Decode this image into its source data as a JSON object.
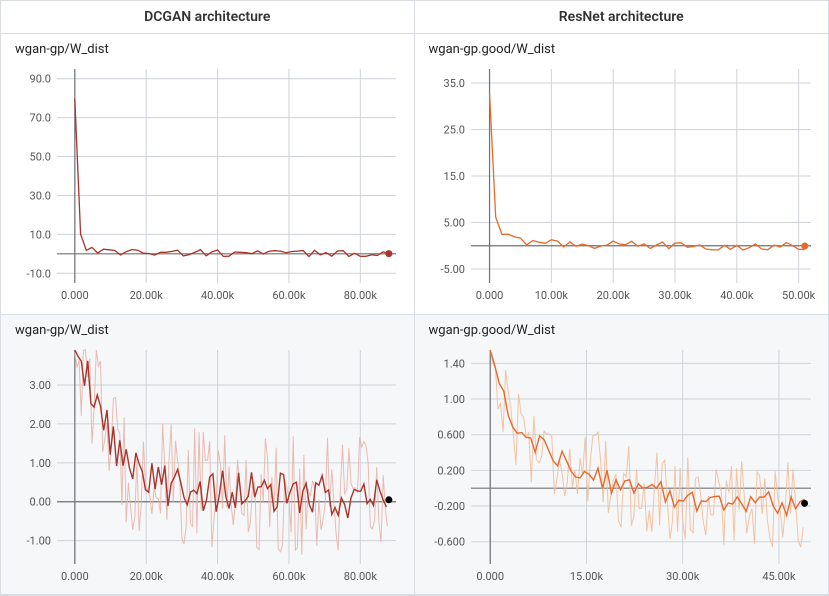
{
  "headers": {
    "left": "DCGAN architecture",
    "right": "ResNet architecture"
  },
  "charts": {
    "tl": {
      "title": "wgan-gp/W_dist",
      "type": "line",
      "line_color": "#a8342a",
      "marker_color": "#a8342a",
      "background_color": "#ffffff",
      "grid_color": "#cfd3d8",
      "axis_color": "#6e7377",
      "line_width": 1.3,
      "end_marker_radius": 3.5,
      "xlim": [
        -5000,
        90000
      ],
      "ylim": [
        -15,
        95
      ],
      "xticks": [
        0,
        20000,
        40000,
        60000,
        80000
      ],
      "xtick_labels": [
        "0.000",
        "20.00k",
        "40.00k",
        "60.00k",
        "80.00k"
      ],
      "yticks": [
        -10,
        10,
        30,
        50,
        70,
        90
      ],
      "ytick_labels": [
        "-10.0",
        "10.0",
        "30.0",
        "50.0",
        "70.0",
        "90.0"
      ],
      "title_fontsize": 13,
      "tick_fontsize": 11,
      "series_smoothed": [
        [
          0,
          80
        ],
        [
          300,
          55
        ],
        [
          600,
          35
        ],
        [
          900,
          22
        ],
        [
          1200,
          15
        ],
        [
          1600,
          10
        ],
        [
          2000,
          7
        ],
        [
          2800,
          4
        ],
        [
          4000,
          2.5
        ],
        [
          6000,
          1.8
        ],
        [
          10000,
          1.2
        ],
        [
          15000,
          1.0
        ],
        [
          20000,
          0.8
        ],
        [
          30000,
          0.5
        ],
        [
          40000,
          0.3
        ],
        [
          50000,
          0.3
        ],
        [
          60000,
          0.2
        ],
        [
          70000,
          0.2
        ],
        [
          80000,
          0.1
        ],
        [
          88000,
          0.1
        ]
      ],
      "series_noise_amp": 1.8,
      "series_noise_freq": 1600
    },
    "tr": {
      "title": "wgan-gp.good/W_dist",
      "type": "line",
      "line_color": "#e86a2b",
      "marker_color": "#e86a2b",
      "background_color": "#ffffff",
      "grid_color": "#cfd3d8",
      "axis_color": "#6e7377",
      "line_width": 1.3,
      "end_marker_radius": 3.5,
      "xlim": [
        -3000,
        52000
      ],
      "ylim": [
        -8,
        38
      ],
      "xticks": [
        0,
        10000,
        20000,
        30000,
        40000,
        50000
      ],
      "xtick_labels": [
        "0.000",
        "10.00k",
        "20.00k",
        "30.00k",
        "40.00k",
        "50.00k"
      ],
      "yticks": [
        -5,
        5,
        15,
        25,
        35
      ],
      "ytick_labels": [
        "-5.00",
        "5.00",
        "15.0",
        "25.0",
        "35.0"
      ],
      "title_fontsize": 13,
      "tick_fontsize": 11,
      "series_smoothed": [
        [
          0,
          33
        ],
        [
          200,
          22
        ],
        [
          400,
          14
        ],
        [
          700,
          9
        ],
        [
          1000,
          6
        ],
        [
          1500,
          4
        ],
        [
          2200,
          2.5
        ],
        [
          3200,
          1.5
        ],
        [
          5000,
          1.0
        ],
        [
          8000,
          0.7
        ],
        [
          12000,
          0.4
        ],
        [
          18000,
          0.2
        ],
        [
          25000,
          0.1
        ],
        [
          32000,
          0.0
        ],
        [
          40000,
          -0.05
        ],
        [
          48000,
          -0.05
        ],
        [
          51000,
          -0.05
        ]
      ],
      "series_noise_amp": 0.9,
      "series_noise_freq": 1000
    },
    "bl": {
      "title": "wgan-gp/W_dist",
      "type": "line",
      "line_color": "#a8342a",
      "raw_color": "#e8b4ab",
      "background_color": "#f6f7f8",
      "grid_color": "#cfd3d8",
      "axis_color": "#6e7377",
      "line_width": 1.4,
      "raw_line_width": 1.0,
      "end_marker_radius": 3.5,
      "xlim": [
        -5000,
        90000
      ],
      "ylim": [
        -1.6,
        3.9
      ],
      "xticks": [
        0,
        20000,
        40000,
        60000,
        80000
      ],
      "xtick_labels": [
        "0.000",
        "20.00k",
        "40.00k",
        "60.00k",
        "80.00k"
      ],
      "yticks": [
        -1.0,
        0.0,
        1.0,
        2.0,
        3.0
      ],
      "ytick_labels": [
        "-1.00",
        "0.00",
        "1.00",
        "2.00",
        "3.00"
      ],
      "title_fontsize": 13,
      "tick_fontsize": 11,
      "series_smoothed": [
        [
          0,
          3.9
        ],
        [
          3000,
          3.4
        ],
        [
          6000,
          2.6
        ],
        [
          9000,
          1.9
        ],
        [
          12000,
          1.3
        ],
        [
          15000,
          0.9
        ],
        [
          18000,
          0.7
        ],
        [
          22000,
          0.5
        ],
        [
          28000,
          0.4
        ],
        [
          35000,
          0.3
        ],
        [
          45000,
          0.25
        ],
        [
          55000,
          0.2
        ],
        [
          65000,
          0.15
        ],
        [
          75000,
          0.1
        ],
        [
          85000,
          0.05
        ],
        [
          88000,
          0.05
        ]
      ],
      "series_noise_amp": 0.55,
      "series_noise_freq": 900,
      "raw_noise_amp": 1.6,
      "raw_noise_freq": 600
    },
    "br": {
      "title": "wgan-gp.good/W_dist",
      "type": "line",
      "line_color": "#e86a2b",
      "raw_color": "#f4bd99",
      "background_color": "#f6f7f8",
      "grid_color": "#cfd3d8",
      "axis_color": "#6e7377",
      "line_width": 1.4,
      "raw_line_width": 1.0,
      "end_marker_radius": 3.5,
      "xlim": [
        -3000,
        50000
      ],
      "ylim": [
        -0.85,
        1.55
      ],
      "xticks": [
        0,
        15000,
        30000,
        45000
      ],
      "xtick_labels": [
        "0.000",
        "15.00k",
        "30.00k",
        "45.00k"
      ],
      "yticks": [
        -0.6,
        -0.2,
        0.2,
        0.6,
        1.0,
        1.4
      ],
      "ytick_labels": [
        "-0.600",
        "-0.200",
        "0.200",
        "0.600",
        "1.00",
        "1.40"
      ],
      "title_fontsize": 13,
      "tick_fontsize": 11,
      "series_smoothed": [
        [
          0,
          1.55
        ],
        [
          1500,
          1.1
        ],
        [
          3000,
          0.85
        ],
        [
          5000,
          0.65
        ],
        [
          7000,
          0.5
        ],
        [
          9500,
          0.38
        ],
        [
          12000,
          0.28
        ],
        [
          15000,
          0.18
        ],
        [
          18000,
          0.1
        ],
        [
          22000,
          0.02
        ],
        [
          26000,
          -0.05
        ],
        [
          30000,
          -0.1
        ],
        [
          35000,
          -0.14
        ],
        [
          40000,
          -0.16
        ],
        [
          45000,
          -0.17
        ],
        [
          49000,
          -0.17
        ]
      ],
      "series_noise_amp": 0.14,
      "series_noise_freq": 700,
      "raw_noise_amp": 0.5,
      "raw_noise_freq": 400
    }
  }
}
